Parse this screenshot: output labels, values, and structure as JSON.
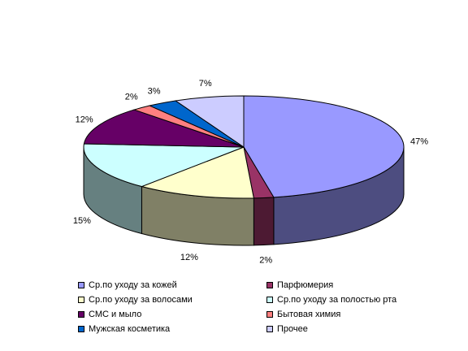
{
  "chart_data": {
    "type": "pie",
    "style": "3d",
    "slices": [
      {
        "label": "Ср.по уходу за кожей",
        "value": 47,
        "data_label": "47%",
        "color": "#9999FF"
      },
      {
        "label": "Парфюмерия",
        "value": 2,
        "data_label": "2%",
        "color": "#993366"
      },
      {
        "label": "Ср.по уходу за волосами",
        "value": 12,
        "data_label": "12%",
        "color": "#FFFFCC"
      },
      {
        "label": "Ср.по  уходу за полостью рта",
        "value": 15,
        "data_label": "15%",
        "color": "#CCFFFF"
      },
      {
        "label": "СМС и мыло",
        "value": 12,
        "data_label": "12%",
        "color": "#660066"
      },
      {
        "label": "Бытовая химия",
        "value": 2,
        "data_label": "2%",
        "color": "#FF8080"
      },
      {
        "label": "Мужская косметика",
        "value": 3,
        "data_label": "3%",
        "color": "#0066CC"
      },
      {
        "label": "Прочее",
        "value": 7,
        "data_label": "7%",
        "color": "#CCCCFF"
      }
    ],
    "legend_position": "bottom"
  }
}
